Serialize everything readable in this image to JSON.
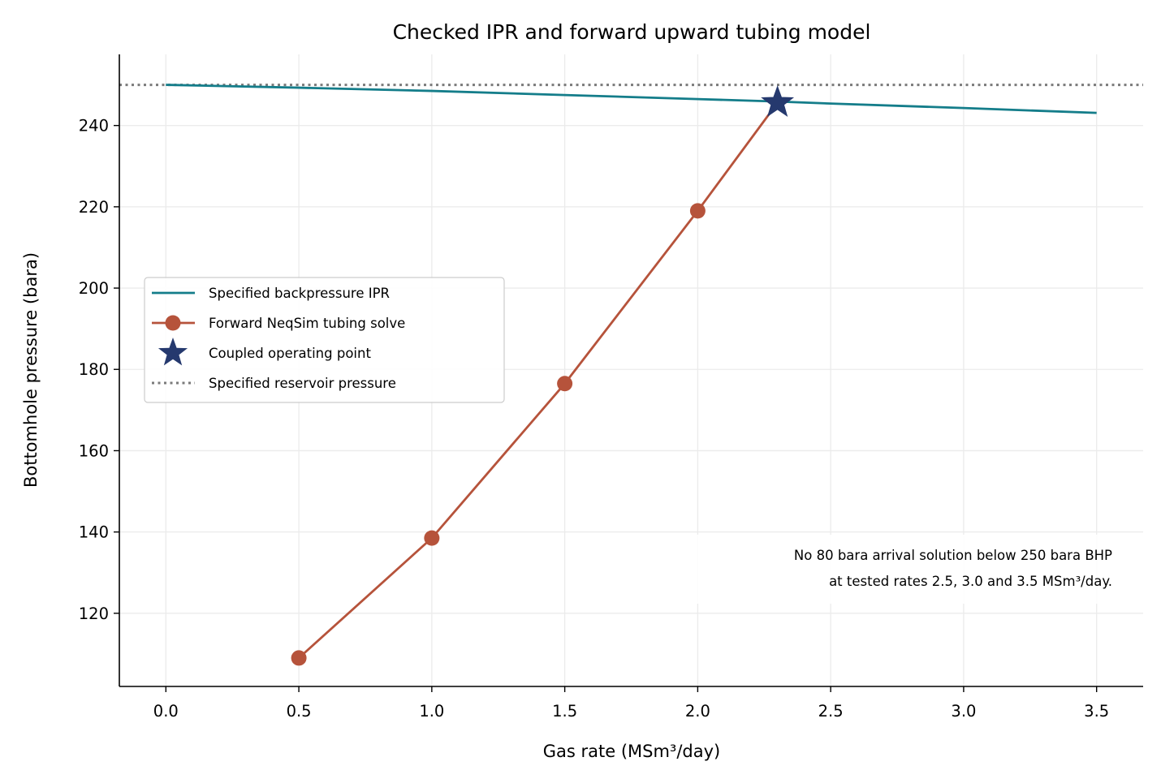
{
  "chart_data": {
    "type": "line",
    "title": "Checked IPR and forward upward tubing model",
    "xlabel": "Gas rate (MSm³/day)",
    "ylabel": "Bottomhole pressure (bara)",
    "xlim": [
      -0.175,
      3.675
    ],
    "ylim": [
      102,
      257.5
    ],
    "xticks": [
      0.0,
      0.5,
      1.0,
      1.5,
      2.0,
      2.5,
      3.0,
      3.5
    ],
    "xtick_labels": [
      "0.0",
      "0.5",
      "1.0",
      "1.5",
      "2.0",
      "2.5",
      "3.0",
      "3.5"
    ],
    "yticks": [
      120,
      140,
      160,
      180,
      200,
      220,
      240
    ],
    "ytick_labels": [
      "120",
      "140",
      "160",
      "180",
      "200",
      "220",
      "240"
    ],
    "grid": true,
    "legend_position": "center-left",
    "series": [
      {
        "name": "Specified backpressure IPR",
        "kind": "line",
        "color": "#147d8a",
        "x": [
          0.0,
          0.5,
          1.0,
          1.5,
          2.0,
          2.3,
          2.5,
          3.0,
          3.5
        ],
        "y": [
          250.0,
          249.3,
          248.5,
          247.5,
          246.5,
          245.9,
          245.4,
          244.3,
          243.1
        ]
      },
      {
        "name": "Forward NeqSim tubing solve",
        "kind": "line-marker",
        "color": "#b6533b",
        "x": [
          0.5,
          1.0,
          1.5,
          2.0,
          2.3
        ],
        "y": [
          109.0,
          138.5,
          176.5,
          219.0,
          245.6
        ]
      },
      {
        "name": "Coupled operating point",
        "kind": "star",
        "color": "#25396e",
        "x": [
          2.3
        ],
        "y": [
          245.6
        ]
      },
      {
        "name": "Specified reservoir pressure",
        "kind": "hline-dotted",
        "color": "#7a7a7a",
        "y_value": 250
      }
    ],
    "annotation": {
      "lines": [
        "No 80 bara arrival solution below 250 bara BHP",
        "at tested rates 2.5, 3.0 and 3.5 MSm³/day."
      ],
      "anchor": "lower-right"
    }
  }
}
